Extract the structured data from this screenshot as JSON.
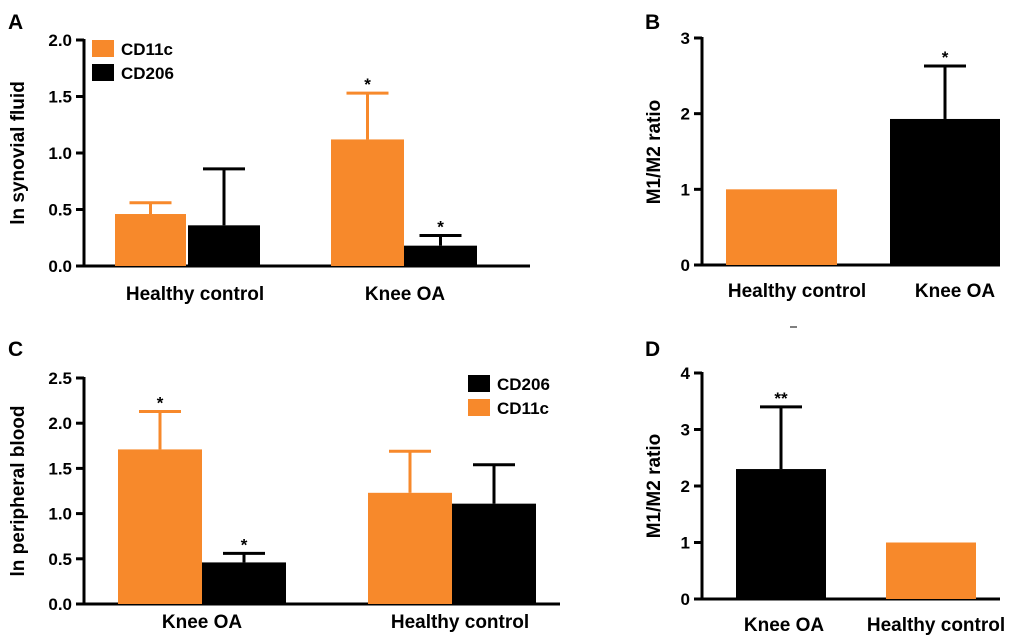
{
  "colors": {
    "orange": "#F7892B",
    "black": "#000000"
  },
  "chart_data": [
    {
      "panel": "A",
      "type": "bar",
      "ylabel": "ln synovial fluid",
      "ylim": [
        0,
        2.0
      ],
      "yticks": [
        "0.0",
        "0.5",
        "1.0",
        "1.5",
        "2.0"
      ],
      "categories": [
        "Healthy control",
        "Knee OA"
      ],
      "legend": {
        "position": "top-left"
      },
      "series": [
        {
          "name": "CD11c",
          "color": "#F7892B",
          "values": [
            0.46,
            1.12
          ],
          "errors": [
            0.1,
            0.41
          ],
          "stars": [
            "",
            "*"
          ]
        },
        {
          "name": "CD206",
          "color": "#000000",
          "values": [
            0.36,
            0.18
          ],
          "errors": [
            0.5,
            0.09
          ],
          "stars": [
            "",
            "*"
          ]
        }
      ]
    },
    {
      "panel": "B",
      "type": "bar",
      "ylabel": "M1/M2 ratio",
      "ylim": [
        0,
        3
      ],
      "yticks": [
        "0",
        "1",
        "2",
        "3"
      ],
      "categories": [
        "Healthy control",
        "Knee OA"
      ],
      "series": [
        {
          "colors": [
            "#F7892B",
            "#000000"
          ],
          "values": [
            1.0,
            1.93
          ],
          "errors": [
            0,
            0.7
          ],
          "stars": [
            "",
            "*"
          ]
        }
      ]
    },
    {
      "panel": "C",
      "type": "bar",
      "ylabel": "ln peripheral blood",
      "ylim": [
        0,
        2.5
      ],
      "yticks": [
        "0.0",
        "0.5",
        "1.0",
        "1.5",
        "2.0",
        "2.5"
      ],
      "categories": [
        "Knee OA",
        "Healthy control"
      ],
      "legend": {
        "position": "top-right"
      },
      "series": [
        {
          "name": "CD11c",
          "color": "#F7892B",
          "values": [
            1.71,
            1.23
          ],
          "errors": [
            0.42,
            0.46
          ],
          "stars": [
            "*",
            ""
          ]
        },
        {
          "name": "CD206",
          "color": "#000000",
          "values": [
            0.46,
            1.11
          ],
          "errors": [
            0.1,
            0.43
          ],
          "stars": [
            "*",
            ""
          ]
        }
      ],
      "legend_order": [
        "CD206",
        "CD11c"
      ]
    },
    {
      "panel": "D",
      "type": "bar",
      "ylabel": "M1/M2 ratio",
      "ylim": [
        0,
        4
      ],
      "yticks": [
        "0",
        "1",
        "2",
        "3",
        "4"
      ],
      "categories": [
        "Knee OA",
        "Healthy control"
      ],
      "series": [
        {
          "colors": [
            "#000000",
            "#F7892B"
          ],
          "values": [
            2.3,
            1.0
          ],
          "errors": [
            1.1,
            0
          ],
          "stars": [
            "**",
            ""
          ]
        }
      ]
    }
  ]
}
